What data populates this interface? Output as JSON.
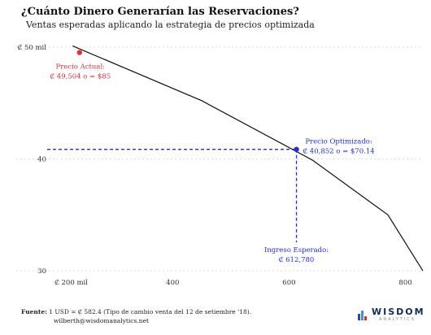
{
  "chart_data": {
    "type": "line",
    "title": "¿Cuánto Dinero Generarían las Reservaciones?",
    "subtitle": "Ventas esperadas aplicando la estrategia de precios optimizada",
    "x_ticks": [
      {
        "value": 200,
        "label": "₡ 200 mil"
      },
      {
        "value": 400,
        "label": "400"
      },
      {
        "value": 600,
        "label": "600"
      },
      {
        "value": 800,
        "label": "800"
      }
    ],
    "y_ticks": [
      {
        "value": 30,
        "label": "30"
      },
      {
        "value": 40,
        "label": "40"
      },
      {
        "value": 50,
        "label": "₡ 50 mil"
      }
    ],
    "xlim": [
      190,
      830
    ],
    "ylim": [
      29.5,
      51
    ],
    "grid": "horizontal",
    "series": [
      {
        "x": [
          228,
          450,
          640,
          770,
          830
        ],
        "y": [
          50.1,
          45.2,
          39.9,
          35.0,
          30.0
        ],
        "color": "#111111"
      }
    ],
    "points": [
      {
        "id": "precio-actual",
        "x": 240,
        "y": 49.504,
        "color": "#e03030",
        "lines": [
          "Precio Actual:",
          "₡ 49,504 o = $85"
        ]
      },
      {
        "id": "precio-optimizado",
        "x": 612.78,
        "y": 40.852,
        "color": "#1f2fd6",
        "lines": [
          "Precio Optimizado:",
          "₡ 40,852 o = $70.14"
        ]
      }
    ],
    "ingreso_label": [
      "Ingreso Esperado:",
      "₡ 612,780"
    ]
  },
  "footer": {
    "label": "Fuente:",
    "source": "1 USD = ₡ 582.4 (Tipo de cambio venta del 12 de setiembre '18).",
    "email": "wilberth@wisdomanalytics.net"
  },
  "logo": {
    "word": "WISDOM",
    "sub": "ANALYTICS",
    "colors": [
      "#1f4fa8",
      "#4a8fd6",
      "#d83030"
    ]
  }
}
